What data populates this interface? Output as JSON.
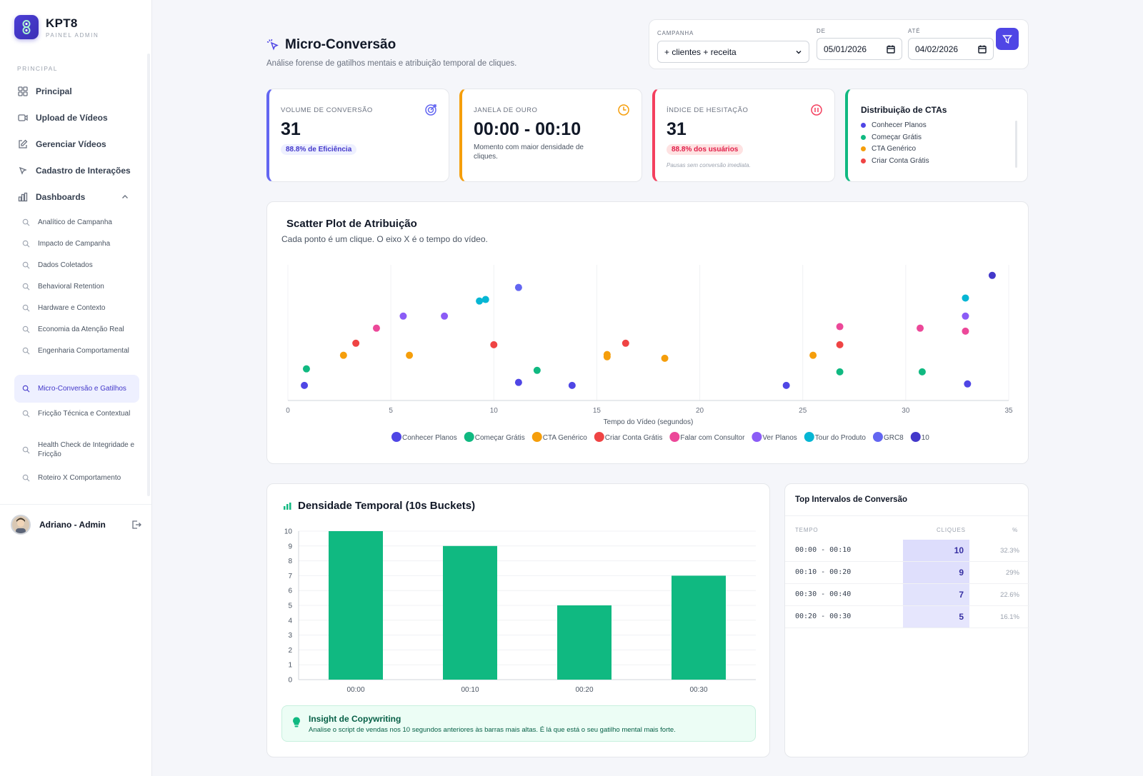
{
  "brand": {
    "name": "KPT8",
    "subtitle": "PAINEL ADMIN"
  },
  "sidebar": {
    "section_label": "PRINCIPAL",
    "items": [
      {
        "label": "Principal",
        "icon": "grid-icon"
      },
      {
        "label": "Upload de Vídeos",
        "icon": "video-icon"
      },
      {
        "label": "Gerenciar Vídeos",
        "icon": "edit-icon"
      },
      {
        "label": "Cadastro de Interações",
        "icon": "cursor-icon"
      },
      {
        "label": "Dashboards",
        "icon": "chart-icon"
      }
    ],
    "dashboards": [
      "Analítico de Campanha",
      "Impacto de Campanha",
      "Dados Coletados",
      "Behavioral Retention",
      "Hardware e Contexto",
      "Economia da Atenção Real",
      "Engenharia Comportamental",
      "Micro-Conversão e Gatilhos",
      "Fricção Técnica e Contextual",
      "Health Check de Integridade e Fricção",
      "Roteiro X Comportamento"
    ],
    "active_dashboard": "Micro-Conversão e Gatilhos",
    "user": {
      "name": "Adriano - Admin"
    }
  },
  "header": {
    "title": "Micro-Conversão",
    "subtitle": "Análise forense de gatilhos mentais e atribuição temporal de cliques."
  },
  "filters": {
    "campaign_label": "CAMPANHA",
    "campaign_value": "+ clientes + receita",
    "from_label": "DE",
    "from_value": "05/01/2026",
    "to_label": "ATÉ",
    "to_value": "04/02/2026"
  },
  "kpis": {
    "volume": {
      "label": "VOLUME DE CONVERSÃO",
      "value": "31",
      "badge": "88.8% de Eficiência"
    },
    "janela": {
      "label": "JANELA DE OURO",
      "value": "00:00 - 00:10",
      "desc": "Momento com maior densidade de cliques."
    },
    "hesitacao": {
      "label": "ÍNDICE DE HESITAÇÃO",
      "value": "31",
      "badge": "88.8% dos usuários",
      "note": "Pausas sem conversão imediata."
    },
    "ctas": {
      "title": "Distribuição de CTAs",
      "items": [
        "Conhecer Planos",
        "Começar Grátis",
        "CTA Genérico",
        "Criar Conta Grátis"
      ],
      "colors": [
        "#4f46e5",
        "#10b981",
        "#f59e0b",
        "#ef4444"
      ]
    }
  },
  "scatter": {
    "title": "Scatter Plot de Atribuição",
    "subtitle": "Cada ponto é um clique. O eixo X é o tempo do vídeo."
  },
  "density": {
    "title": "Densidade Temporal (10s Buckets)"
  },
  "insight": {
    "title": "Insight de Copywriting",
    "text": "Analise o script de vendas nos 10 segundos anteriores às barras mais altas. É lá que está o seu gatilho mental mais forte."
  },
  "top_intervals": {
    "title": "Top Intervalos de Conversão",
    "headers": {
      "time": "TEMPO",
      "clicks": "CLIQUES",
      "pct": "%"
    },
    "rows": [
      {
        "time": "00:00 - 00:10",
        "clicks": "10",
        "pct": "32.3%",
        "intensity": 1.0
      },
      {
        "time": "00:10 - 00:20",
        "clicks": "9",
        "pct": "29%",
        "intensity": 0.9
      },
      {
        "time": "00:30 - 00:40",
        "clicks": "7",
        "pct": "22.6%",
        "intensity": 0.7
      },
      {
        "time": "00:20 - 00:30",
        "clicks": "5",
        "pct": "16.1%",
        "intensity": 0.5
      }
    ]
  },
  "chart_data": [
    {
      "type": "scatter",
      "xlabel": "Tempo do Vídeo (segundos)",
      "xlim": [
        0,
        35
      ],
      "xticks": [
        0,
        5,
        10,
        15,
        20,
        25,
        30,
        35
      ],
      "series": [
        {
          "name": "Conhecer Planos",
          "color": "#4f46e5",
          "points": [
            [
              0.8,
              1
            ],
            [
              11.2,
              1.2
            ],
            [
              13.8,
              1
            ],
            [
              24.2,
              1
            ],
            [
              33,
              1.1
            ]
          ]
        },
        {
          "name": "Começar Grátis",
          "color": "#10b981",
          "points": [
            [
              0.9,
              2.1
            ],
            [
              12.1,
              2
            ],
            [
              26.8,
              1.9
            ],
            [
              30.8,
              1.9
            ]
          ]
        },
        {
          "name": "CTA Genérico",
          "color": "#f59e0b",
          "points": [
            [
              2.7,
              3
            ],
            [
              5.9,
              3
            ],
            [
              15.5,
              3.05
            ],
            [
              15.5,
              2.9
            ],
            [
              18.3,
              2.8
            ],
            [
              25.5,
              3
            ]
          ]
        },
        {
          "name": "Criar Conta Grátis",
          "color": "#ef4444",
          "points": [
            [
              3.3,
              3.8
            ],
            [
              10,
              3.7
            ],
            [
              16.4,
              3.8
            ],
            [
              26.8,
              3.7
            ]
          ]
        },
        {
          "name": "Falar com Consultor",
          "color": "#ec4899",
          "points": [
            [
              4.3,
              4.8
            ],
            [
              26.8,
              4.9
            ],
            [
              30.7,
              4.8
            ],
            [
              32.9,
              4.6
            ]
          ]
        },
        {
          "name": "Ver Planos",
          "color": "#8b5cf6",
          "points": [
            [
              5.6,
              5.6
            ],
            [
              7.6,
              5.6
            ],
            [
              32.9,
              5.6
            ]
          ]
        },
        {
          "name": "Tour do Produto",
          "color": "#06b6d4",
          "points": [
            [
              9.3,
              6.6
            ],
            [
              9.6,
              6.7
            ],
            [
              32.9,
              6.8
            ]
          ]
        },
        {
          "name": "GRC8",
          "color": "#6366f1",
          "points": [
            [
              11.2,
              7.5
            ]
          ]
        },
        {
          "name": "10",
          "color": "#4338ca",
          "points": [
            [
              34.2,
              8.3
            ]
          ]
        }
      ]
    },
    {
      "type": "bar",
      "categories": [
        "00:00",
        "00:10",
        "00:20",
        "00:30"
      ],
      "values": [
        10,
        9,
        5,
        7
      ],
      "ylim": [
        0,
        10
      ],
      "yticks": [
        0,
        1,
        2,
        3,
        4,
        5,
        6,
        7,
        8,
        9,
        10
      ],
      "color": "#10b981"
    }
  ]
}
